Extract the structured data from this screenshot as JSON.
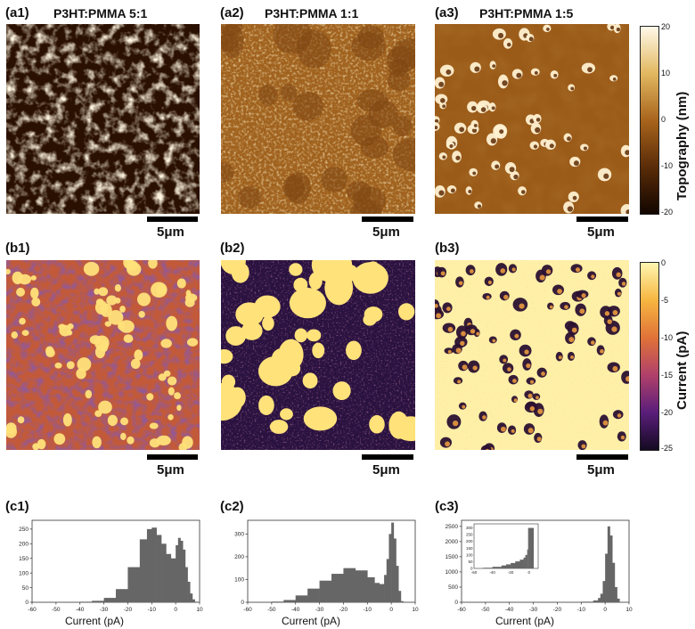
{
  "row_a": {
    "labels": [
      "(a1)",
      "(a2)",
      "(a3)"
    ],
    "titles": [
      "P3HT:PMMA 5:1",
      "P3HT:PMMA 1:1",
      "P3HT:PMMA 1:5"
    ],
    "scale_bar": "5μm"
  },
  "row_b": {
    "labels": [
      "(b1)",
      "(b2)",
      "(b3)"
    ],
    "scale_bar": "5μm"
  },
  "row_c": {
    "labels": [
      "(c1)",
      "(c2)",
      "(c3)"
    ]
  },
  "colorbars": {
    "topography": {
      "title": "Topography (nm)",
      "ticks": [
        "20",
        "10",
        "0",
        "-10",
        "-20"
      ]
    },
    "current": {
      "title": "Current (pA)",
      "ticks": [
        "0",
        "-5",
        "-10",
        "-15",
        "-20",
        "-25"
      ]
    }
  },
  "colors": {
    "topo_low": "#1a0a00",
    "topo_mid": "#8a4a10",
    "topo_high": "#fff4d8",
    "cur_low": "#1a0d2e",
    "cur_mid": "#b0406a",
    "cur_high": "#ffef9a",
    "hist_fill": "#666666"
  },
  "chart_data": [
    {
      "type": "histogram",
      "xlabel": "Current (pA)",
      "x_ticks": [
        -60,
        -50,
        -40,
        -30,
        -20,
        -10,
        0,
        10
      ],
      "y_ticks": [
        0,
        50,
        100,
        150,
        200,
        250
      ],
      "xlim": [
        -60,
        10
      ],
      "ylim": [
        0,
        280
      ],
      "x": [
        -40,
        -35,
        -30,
        -25,
        -20,
        -15,
        -12,
        -10,
        -8,
        -6,
        -4,
        -2,
        0,
        1,
        2,
        3,
        4,
        5,
        6,
        7,
        8
      ],
      "values": [
        2,
        5,
        15,
        45,
        120,
        215,
        250,
        255,
        230,
        200,
        165,
        150,
        195,
        220,
        210,
        180,
        120,
        70,
        30,
        10,
        2
      ]
    },
    {
      "type": "histogram",
      "xlabel": "Current (pA)",
      "x_ticks": [
        -60,
        -50,
        -40,
        -30,
        -20,
        -10,
        0,
        10
      ],
      "y_ticks": [
        0,
        100,
        200,
        300
      ],
      "xlim": [
        -60,
        10
      ],
      "ylim": [
        0,
        360
      ],
      "x": [
        -50,
        -45,
        -40,
        -35,
        -30,
        -25,
        -20,
        -15,
        -10,
        -7,
        -5,
        -3,
        -2,
        -1,
        0,
        1,
        2,
        3,
        4
      ],
      "values": [
        3,
        10,
        30,
        60,
        95,
        125,
        150,
        140,
        110,
        85,
        80,
        120,
        190,
        300,
        350,
        280,
        160,
        50,
        5
      ]
    },
    {
      "type": "histogram",
      "xlabel": "Current (pA)",
      "x_ticks": [
        -60,
        -50,
        -40,
        -30,
        -20,
        -10,
        0,
        10
      ],
      "y_ticks": [
        0,
        500,
        1000,
        1500,
        2000,
        2500
      ],
      "xlim": [
        -60,
        10
      ],
      "ylim": [
        0,
        2700
      ],
      "x": [
        -30,
        -20,
        -10,
        -5,
        -3,
        -2,
        -1,
        0,
        1,
        2,
        3,
        4,
        5,
        6
      ],
      "values": [
        3,
        8,
        20,
        60,
        140,
        280,
        700,
        1600,
        2500,
        2200,
        1300,
        500,
        120,
        10
      ],
      "inset": {
        "x_ticks": [
          -60,
          -40,
          -20,
          0
        ],
        "y_ticks": [
          0,
          50,
          100,
          150,
          200,
          250,
          300
        ],
        "xlim": [
          -60,
          10
        ],
        "ylim": [
          0,
          330
        ],
        "x": [
          -50,
          -40,
          -30,
          -25,
          -20,
          -15,
          -10,
          -6,
          -4,
          -2,
          -1,
          0,
          2,
          4
        ],
        "values": [
          5,
          12,
          22,
          30,
          40,
          52,
          65,
          80,
          100,
          140,
          300,
          300,
          300,
          300
        ]
      }
    }
  ]
}
